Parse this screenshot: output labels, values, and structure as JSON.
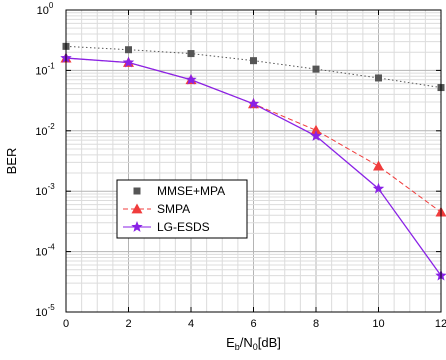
{
  "chart_data": {
    "type": "line",
    "title": "",
    "xlabel": {
      "main": "E",
      "sub_b": "b",
      "slash": "/N",
      "sub_0": "0",
      "unit": "[dB]"
    },
    "ylabel": "BER",
    "x_ticks": [
      "0",
      "2",
      "4",
      "6",
      "8",
      "10",
      "12"
    ],
    "y_ticks": [
      {
        "base": "10",
        "exp": "0"
      },
      {
        "base": "10",
        "exp": "-1"
      },
      {
        "base": "10",
        "exp": "-2"
      },
      {
        "base": "10",
        "exp": "-3"
      },
      {
        "base": "10",
        "exp": "-4"
      },
      {
        "base": "10",
        "exp": "-5"
      }
    ],
    "xlim": [
      0,
      12
    ],
    "ylim": [
      1e-05,
      1
    ],
    "yscale": "log",
    "grid": true,
    "legend_position": "lower-left",
    "series": [
      {
        "name": "MMSE+MPA",
        "marker": "square",
        "line": "dotted",
        "color": "#555555",
        "x": [
          0,
          2,
          4,
          6,
          8,
          10,
          12
        ],
        "y": [
          0.25,
          0.22,
          0.19,
          0.145,
          0.105,
          0.075,
          0.052
        ]
      },
      {
        "name": "SMPA",
        "marker": "triangle",
        "line": "dashed",
        "color": "#f03c3c",
        "x": [
          0,
          2,
          4,
          6,
          8,
          10,
          12
        ],
        "y": [
          0.16,
          0.135,
          0.07,
          0.028,
          0.0102,
          0.0026,
          0.00045
        ]
      },
      {
        "name": "LG-ESDS",
        "marker": "star",
        "line": "solid",
        "color": "#8a22e6",
        "x": [
          0,
          2,
          4,
          6,
          8,
          10,
          12
        ],
        "y": [
          0.16,
          0.135,
          0.07,
          0.028,
          0.0082,
          0.0011,
          4e-05
        ]
      }
    ]
  }
}
